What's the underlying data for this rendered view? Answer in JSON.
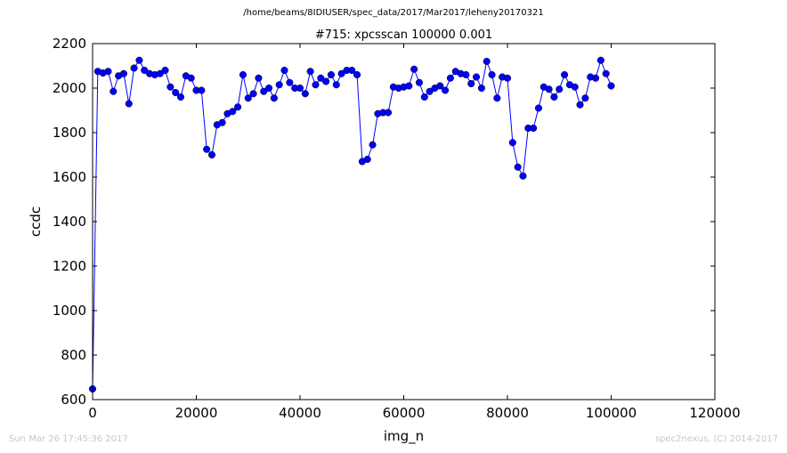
{
  "header": {
    "file_path": "/home/beams/8IDIUSER/spec_data/2017/Mar2017/leheny20170321"
  },
  "footer": {
    "timestamp": "Sun Mar 26 17:45:36 2017",
    "credit": "spec2nexus, (C) 2014-2017"
  },
  "chart_data": {
    "type": "line",
    "title": "#715: xpcsscan 100000 0.001",
    "xlabel": "img_n",
    "ylabel": "ccdc",
    "xlim": [
      0,
      120000
    ],
    "ylim": [
      600,
      2200
    ],
    "xticks": [
      0,
      20000,
      40000,
      60000,
      80000,
      100000,
      120000
    ],
    "yticks": [
      600,
      800,
      1000,
      1200,
      1400,
      1600,
      1800,
      2000,
      2200
    ],
    "grid": false,
    "marker": "circle",
    "color": "#0000ff",
    "series": [
      {
        "x": [
          0,
          1000,
          2000,
          3000,
          4000,
          5000,
          6000,
          7000,
          8000,
          9000,
          10000,
          11000,
          12000,
          13000,
          14000,
          15000,
          16000,
          17000,
          18000,
          19000,
          20000,
          21000,
          22000,
          23000,
          24000,
          25000,
          26000,
          27000,
          28000,
          29000,
          30000,
          31000,
          32000,
          33000,
          34000,
          35000,
          36000,
          37000,
          38000,
          39000,
          40000,
          41000,
          42000,
          43000,
          44000,
          45000,
          46000,
          47000,
          48000,
          49000,
          50000,
          51000,
          52000,
          53000,
          54000,
          55000,
          56000,
          57000,
          58000,
          59000,
          60000,
          61000,
          62000,
          63000,
          64000,
          65000,
          66000,
          67000,
          68000,
          69000,
          70000,
          71000,
          72000,
          73000,
          74000,
          75000,
          76000,
          77000,
          78000,
          79000,
          80000,
          81000,
          82000,
          83000,
          84000,
          85000,
          86000,
          87000,
          88000,
          89000,
          90000,
          91000,
          92000,
          93000,
          94000,
          95000,
          96000,
          97000,
          98000,
          99000,
          100000
        ],
        "y": [
          648,
          2075,
          2068,
          2075,
          1985,
          2055,
          2065,
          1930,
          2090,
          2125,
          2080,
          2065,
          2060,
          2065,
          2080,
          2005,
          1980,
          1960,
          2055,
          2045,
          1990,
          1990,
          1725,
          1700,
          1835,
          1845,
          1885,
          1895,
          1915,
          2060,
          1955,
          1975,
          2045,
          1985,
          2000,
          1955,
          2015,
          2080,
          2025,
          2000,
          2000,
          1975,
          2075,
          2015,
          2045,
          2030,
          2060,
          2015,
          2065,
          2080,
          2080,
          2060,
          1670,
          1680,
          1745,
          1885,
          1890,
          1890,
          2005,
          2000,
          2005,
          2010,
          2085,
          2025,
          1960,
          1985,
          2000,
          2010,
          1990,
          2045,
          2075,
          2065,
          2060,
          2020,
          2050,
          2000,
          2120,
          2060,
          1955,
          2050,
          2045,
          1755,
          1645,
          1605,
          1820,
          1820,
          1910,
          2005,
          1995,
          1960,
          1995,
          2060,
          2015,
          2005,
          1925,
          1955,
          2050,
          2045,
          2125,
          2065,
          2010
        ]
      }
    ]
  }
}
